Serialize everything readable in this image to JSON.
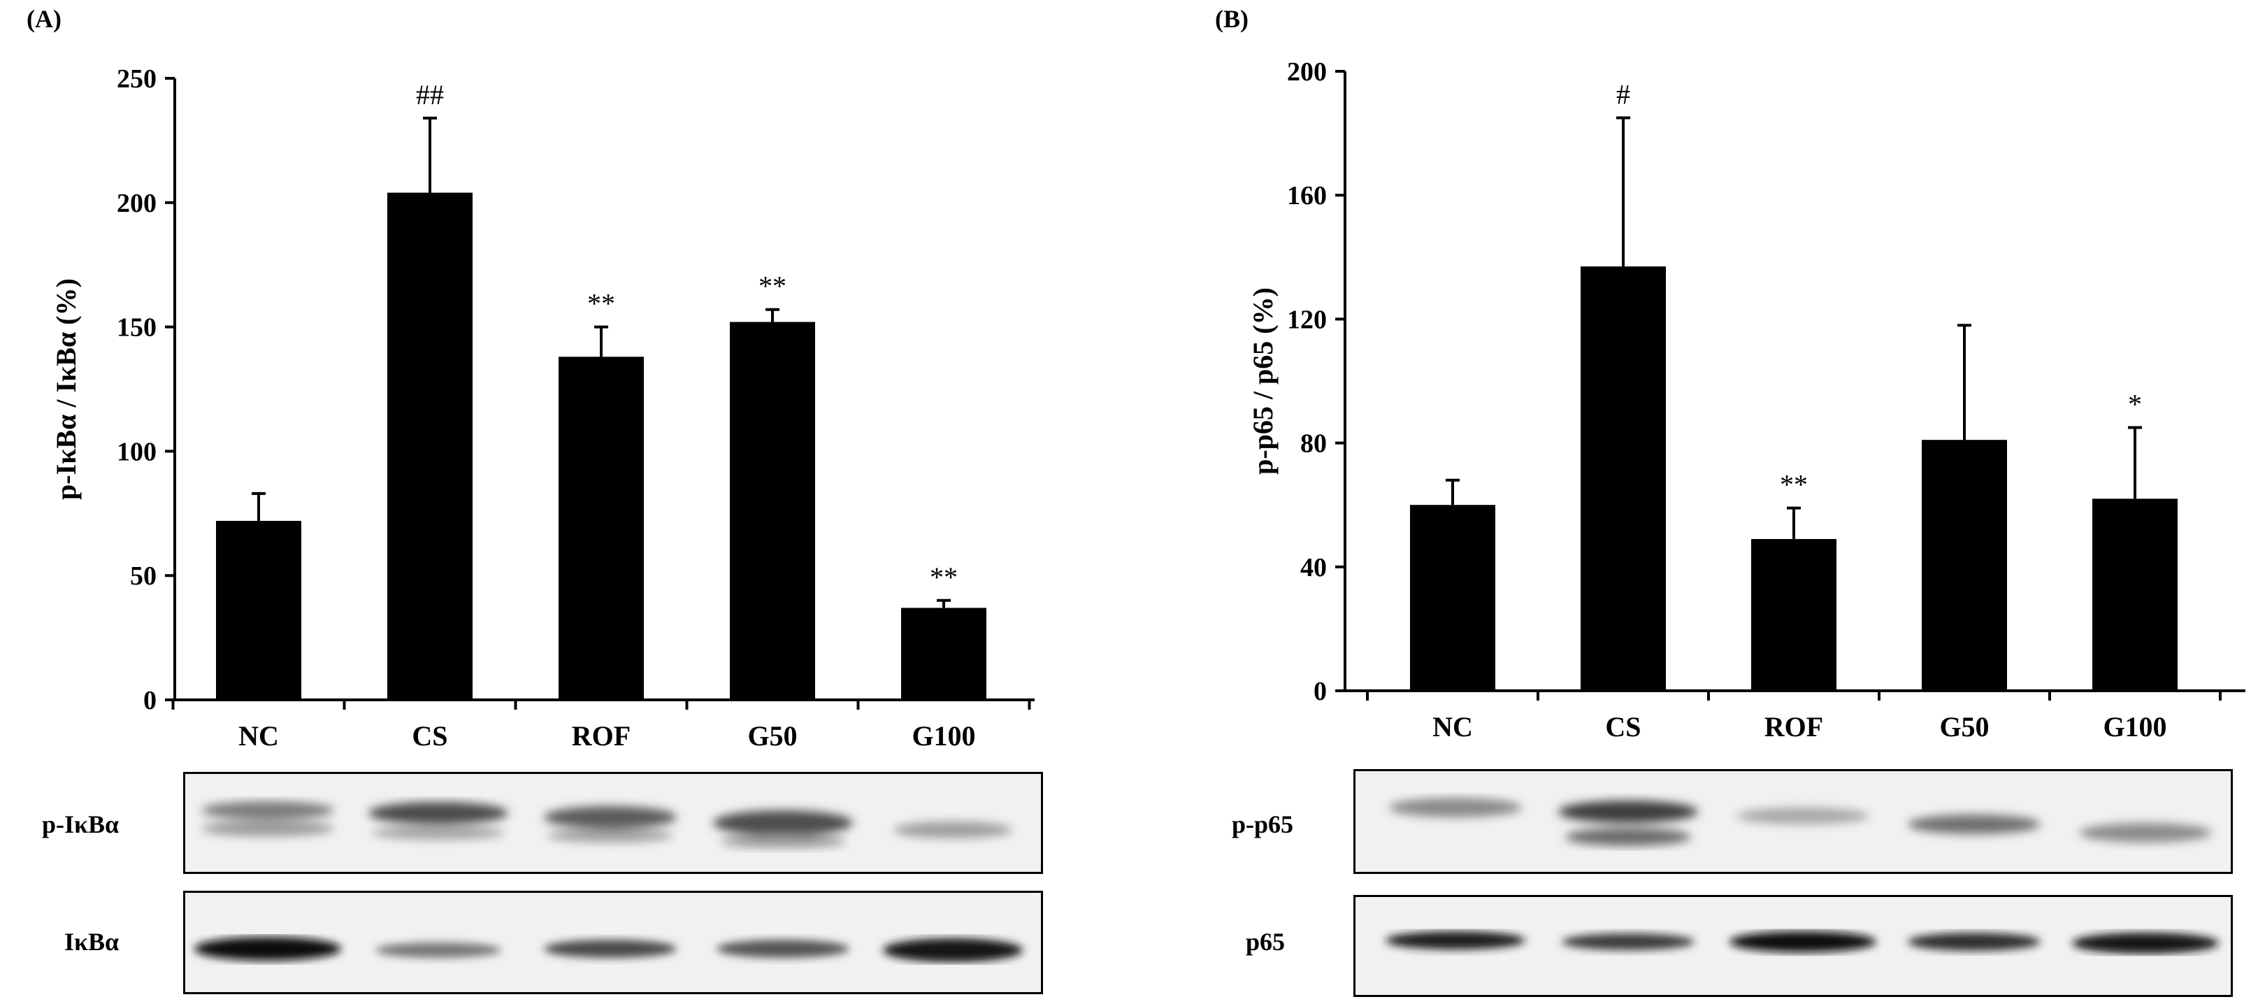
{
  "panels": [
    {
      "letter": "(A)",
      "blot_labels": [
        "p-IκBα",
        "IκBα"
      ]
    },
    {
      "letter": "(B)",
      "blot_labels": [
        "p-p65",
        "p65"
      ]
    }
  ],
  "chart_data": [
    {
      "type": "bar",
      "title": "",
      "xlabel": "",
      "ylabel": "p-IκBα / IκBα (%)",
      "categories": [
        "NC",
        "CS",
        "ROF",
        "G50",
        "G100"
      ],
      "values": [
        72,
        204,
        138,
        152,
        37
      ],
      "errors": [
        11,
        30,
        12,
        5,
        3
      ],
      "annotations": [
        "",
        "##",
        "**",
        "**",
        "**"
      ],
      "ylim": [
        0,
        250
      ],
      "yticks": [
        0,
        50,
        100,
        150,
        200,
        250
      ],
      "bar_color": "#000000",
      "grid": false
    },
    {
      "type": "bar",
      "title": "",
      "xlabel": "",
      "ylabel": "p-p65 / p65 (%)",
      "categories": [
        "NC",
        "CS",
        "ROF",
        "G50",
        "G100"
      ],
      "values": [
        60,
        137,
        49,
        81,
        62
      ],
      "errors": [
        8,
        48,
        10,
        37,
        23
      ],
      "annotations": [
        "",
        "#",
        "**",
        "",
        "*"
      ],
      "ylim": [
        0,
        200
      ],
      "yticks": [
        0,
        40,
        80,
        120,
        160,
        200
      ],
      "bar_color": "#000000",
      "grid": false
    }
  ]
}
